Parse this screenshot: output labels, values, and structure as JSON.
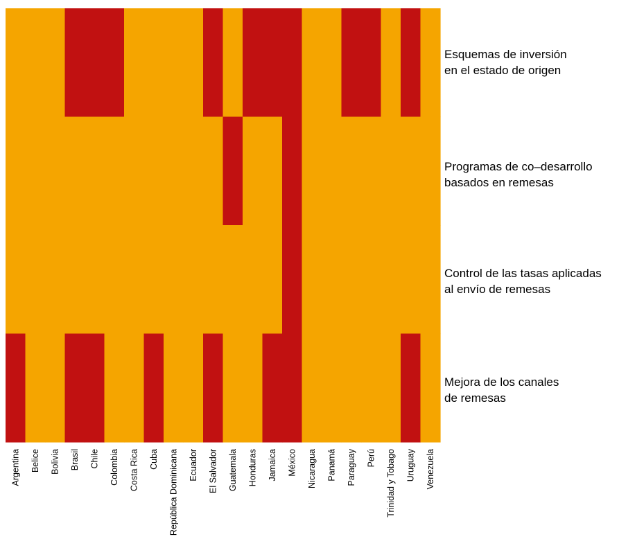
{
  "chart_data": {
    "type": "heatmap",
    "title": "",
    "xlabel": "",
    "ylabel": "",
    "colors": {
      "0": "#F5A500",
      "1": "#C11111"
    },
    "columns": [
      "Argentina",
      "Belice",
      "Bolivia",
      "Brasil",
      "Chile",
      "Colombia",
      "Costa Rica",
      "Cuba",
      "República Dominicana",
      "Ecuador",
      "El Salvador",
      "Guatemala",
      "Honduras",
      "Jamaica",
      "México",
      "Nicaragua",
      "Panamá",
      "Paraguay",
      "Perú",
      "Trinidad y Tobago",
      "Uruguay",
      "Venezuela"
    ],
    "rows": [
      "Esquemas de inversión\nen el estado de origen",
      "Programas de co–desarrollo\nbasados en remesas",
      "Control de las tasas aplicadas\nal envío de remesas",
      "Mejora de los canales\nde remesas"
    ],
    "values": [
      [
        0,
        0,
        0,
        1,
        1,
        1,
        0,
        0,
        0,
        0,
        1,
        0,
        1,
        1,
        1,
        0,
        0,
        1,
        1,
        0,
        1,
        0
      ],
      [
        0,
        0,
        0,
        0,
        0,
        0,
        0,
        0,
        0,
        0,
        0,
        1,
        0,
        0,
        1,
        0,
        0,
        0,
        0,
        0,
        0,
        0
      ],
      [
        0,
        0,
        0,
        0,
        0,
        0,
        0,
        0,
        0,
        0,
        0,
        0,
        0,
        0,
        1,
        0,
        0,
        0,
        0,
        0,
        0,
        0
      ],
      [
        1,
        0,
        0,
        1,
        1,
        0,
        0,
        1,
        0,
        0,
        1,
        0,
        0,
        1,
        1,
        0,
        0,
        0,
        0,
        0,
        1,
        0
      ]
    ]
  }
}
